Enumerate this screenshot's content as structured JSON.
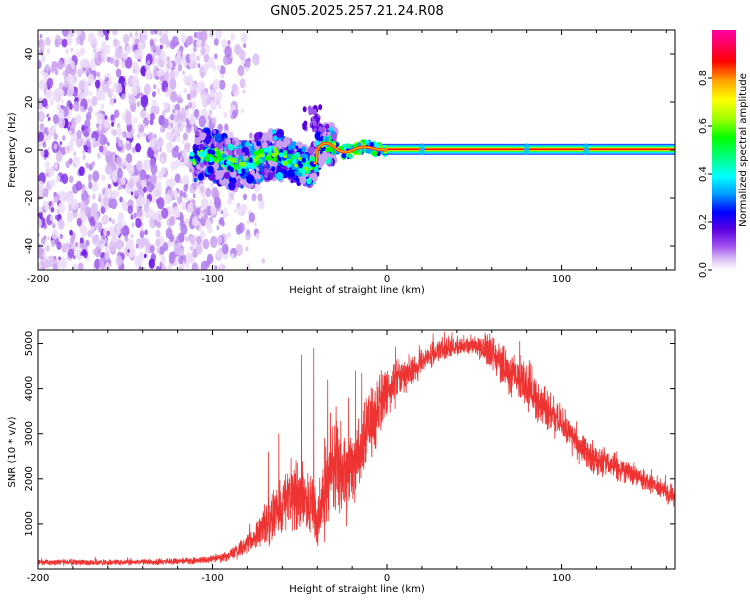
{
  "title": "GN05.2025.257.21.24.R08",
  "chart_data": [
    {
      "type": "heatmap",
      "name": "spectrogram",
      "xlabel": "Height of straight line (km)",
      "ylabel": "Frequency (Hz)",
      "xlim": [
        -200,
        165
      ],
      "ylim": [
        -50,
        50
      ],
      "x_ticks": [
        -200,
        -100,
        0,
        100
      ],
      "y_ticks": [
        -40,
        -20,
        0,
        20,
        40
      ],
      "x_tick_labels": [
        "-200",
        "-100",
        "0",
        "100"
      ],
      "y_tick_labels": [
        "-40",
        "-20",
        "0",
        "20",
        "40"
      ],
      "colorbar": {
        "label": "Normalized spectral amplitude",
        "range": [
          0,
          1
        ],
        "ticks": [
          0.0,
          0.2,
          0.4,
          0.6,
          0.8
        ],
        "tick_labels": [
          "0.0",
          "0.2",
          "0.4",
          "0.6",
          "0.8"
        ],
        "colors": [
          "#ffffff",
          "#d8b8f0",
          "#a050f0",
          "#5a00e0",
          "#0000ff",
          "#00a0ff",
          "#00ffff",
          "#00ff80",
          "#00ff00",
          "#a0ff00",
          "#ffff00",
          "#ffa000",
          "#ff0000",
          "#ff0060",
          "#ff00a0"
        ]
      },
      "features": {
        "noise_region_km": [
          -200,
          -80
        ],
        "signal_track_km": [
          -110,
          165
        ],
        "carrier_frequency_hz": 0
      }
    },
    {
      "type": "line",
      "name": "snr",
      "xlabel": "Height of straight line (km)",
      "ylabel": "SNR (10 * v/v)",
      "xlim": [
        -200,
        165
      ],
      "ylim": [
        0,
        5300
      ],
      "x_ticks": [
        -200,
        -100,
        0,
        100
      ],
      "y_ticks": [
        1000,
        2000,
        3000,
        4000,
        5000
      ],
      "x_tick_labels": [
        "-200",
        "-100",
        "0",
        "100"
      ],
      "y_tick_labels": [
        "1000",
        "2000",
        "3000",
        "4000",
        "5000"
      ],
      "color": "#ee3333",
      "series": [
        {
          "name": "SNR",
          "x": [
            -200,
            -150,
            -110,
            -95,
            -85,
            -75,
            -70,
            -60,
            -55,
            -45,
            -40,
            -35,
            -30,
            -25,
            -20,
            -15,
            -10,
            -5,
            0,
            10,
            20,
            30,
            40,
            50,
            60,
            70,
            80,
            90,
            100,
            110,
            120,
            130,
            140,
            150,
            160,
            165
          ],
          "y": [
            150,
            150,
            180,
            250,
            400,
            700,
            1000,
            1400,
            1700,
            1500,
            1100,
            1900,
            2400,
            2000,
            2300,
            2700,
            3200,
            3600,
            3900,
            4300,
            4600,
            4850,
            4950,
            5000,
            4800,
            4400,
            4000,
            3600,
            3200,
            2700,
            2400,
            2300,
            2100,
            1900,
            1700,
            1600
          ],
          "spread": [
            80,
            80,
            90,
            120,
            200,
            400,
            600,
            800,
            900,
            900,
            1000,
            1300,
            1400,
            1300,
            1200,
            1100,
            1000,
            900,
            700,
            500,
            400,
            300,
            250,
            250,
            500,
            600,
            600,
            550,
            500,
            450,
            400,
            400,
            350,
            300,
            300,
            250
          ],
          "peaks": [
            [
              -68,
              2600
            ],
            [
              -62,
              3000
            ],
            [
              -49,
              4750
            ],
            [
              -42,
              4900
            ],
            [
              -34,
              4200
            ],
            [
              -29,
              3300
            ],
            [
              -22,
              3800
            ],
            [
              -18,
              4400
            ],
            [
              48,
              5200
            ]
          ]
        }
      ]
    }
  ]
}
